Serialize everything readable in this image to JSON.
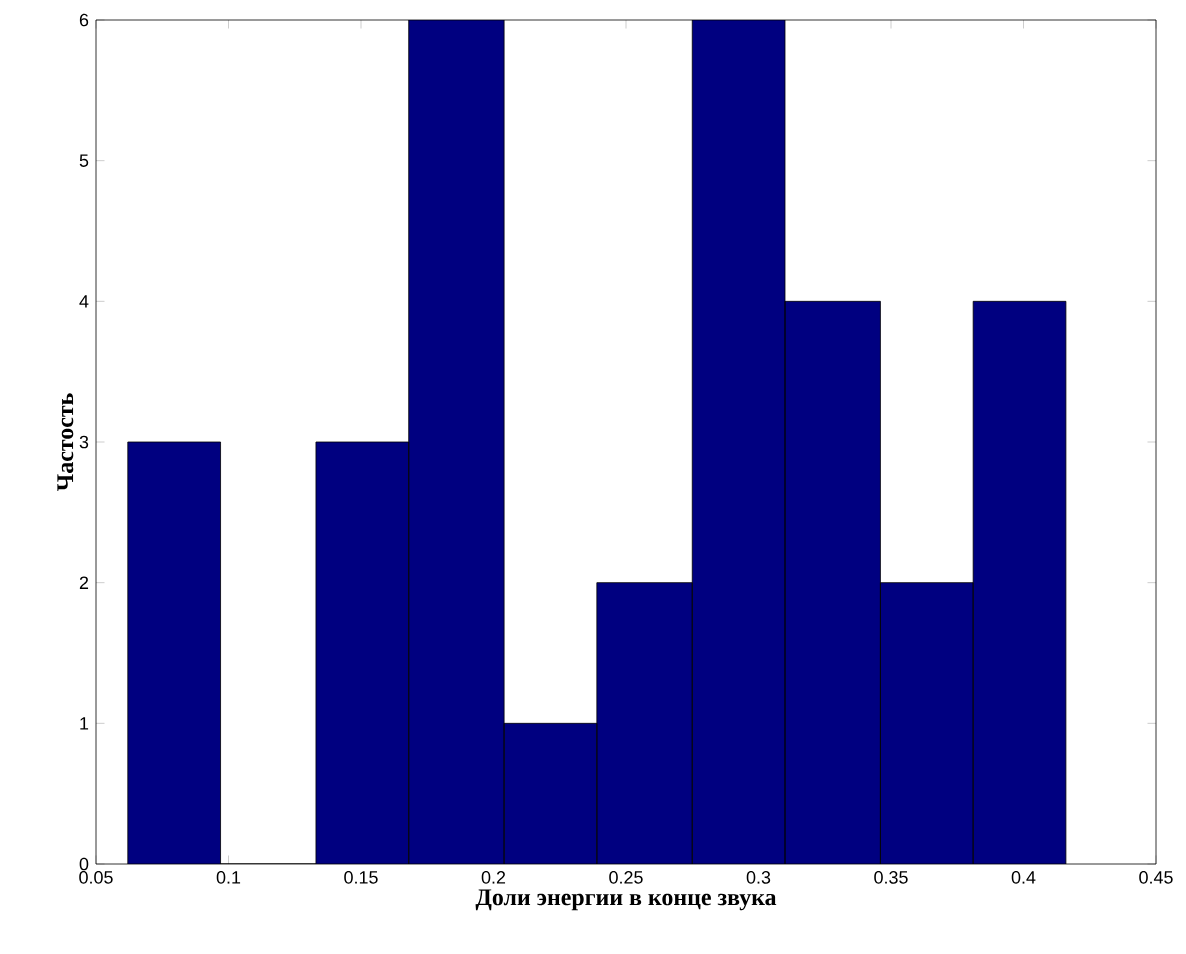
{
  "chart_data": {
    "type": "histogram",
    "xlabel": "Доли энергии в конце звука",
    "ylabel": "Частость",
    "bins": [
      0.062,
      0.097,
      0.133,
      0.168,
      0.204,
      0.239,
      0.275,
      0.31,
      0.346,
      0.381,
      0.416
    ],
    "values": [
      3,
      0,
      3,
      6,
      1,
      2,
      6,
      4,
      2,
      4
    ],
    "color": "#000080",
    "xlim": [
      0.05,
      0.45
    ],
    "xticks": [
      0.05,
      0.1,
      0.15,
      0.2,
      0.25,
      0.3,
      0.35,
      0.4,
      0.45
    ],
    "ylim": [
      0,
      6
    ],
    "yticks": [
      0,
      1,
      2,
      3,
      4,
      5,
      6
    ]
  }
}
